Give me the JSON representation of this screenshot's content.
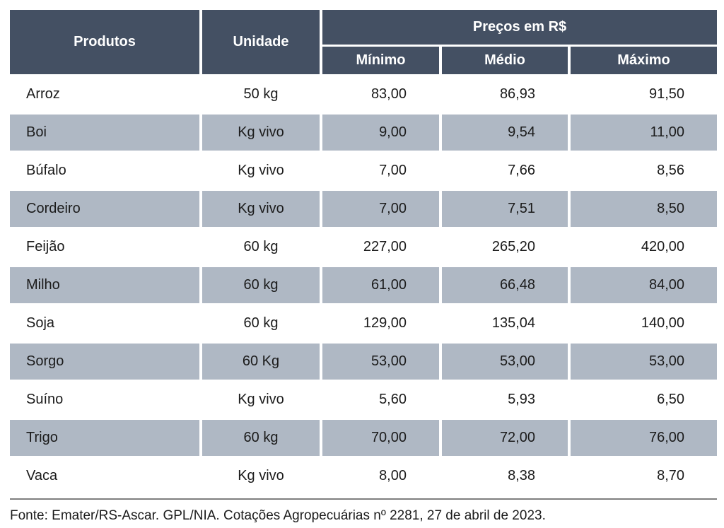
{
  "table": {
    "headers": {
      "produtos": "Produtos",
      "unidade": "Unidade",
      "precos": "Preços em R$",
      "minimo": "Mínimo",
      "medio": "Médio",
      "maximo": "Máximo"
    },
    "rows": [
      {
        "produto": "Arroz",
        "unidade": "50 kg",
        "minimo": "83,00",
        "medio": "86,93",
        "maximo": "91,50"
      },
      {
        "produto": "Boi",
        "unidade": "Kg vivo",
        "minimo": "9,00",
        "medio": "9,54",
        "maximo": "11,00"
      },
      {
        "produto": "Búfalo",
        "unidade": "Kg vivo",
        "minimo": "7,00",
        "medio": "7,66",
        "maximo": "8,56"
      },
      {
        "produto": "Cordeiro",
        "unidade": "Kg vivo",
        "minimo": "7,00",
        "medio": "7,51",
        "maximo": "8,50"
      },
      {
        "produto": "Feijão",
        "unidade": "60 kg",
        "minimo": "227,00",
        "medio": "265,20",
        "maximo": "420,00"
      },
      {
        "produto": "Milho",
        "unidade": "60 kg",
        "minimo": "61,00",
        "medio": "66,48",
        "maximo": "84,00"
      },
      {
        "produto": "Soja",
        "unidade": "60 kg",
        "minimo": "129,00",
        "medio": "135,04",
        "maximo": "140,00"
      },
      {
        "produto": "Sorgo",
        "unidade": "60 Kg",
        "minimo": "53,00",
        "medio": "53,00",
        "maximo": "53,00"
      },
      {
        "produto": "Suíno",
        "unidade": "Kg vivo",
        "minimo": "5,60",
        "medio": "5,93",
        "maximo": "6,50"
      },
      {
        "produto": "Trigo",
        "unidade": "60 kg",
        "minimo": "70,00",
        "medio": "72,00",
        "maximo": "76,00"
      },
      {
        "produto": "Vaca",
        "unidade": "Kg vivo",
        "minimo": "8,00",
        "medio": "8,38",
        "maximo": "8,70"
      }
    ],
    "source": "Fonte: Emater/RS-Ascar. GPL/NIA. Cotações Agropecuárias nº 2281, 27 de abril de 2023."
  },
  "colors": {
    "header_bg": "#445063",
    "band_bg": "#afb8c4",
    "header_text": "#ffffff",
    "body_text": "#1b1b1b",
    "rule": "#7f7f7f",
    "background": "#ffffff"
  }
}
